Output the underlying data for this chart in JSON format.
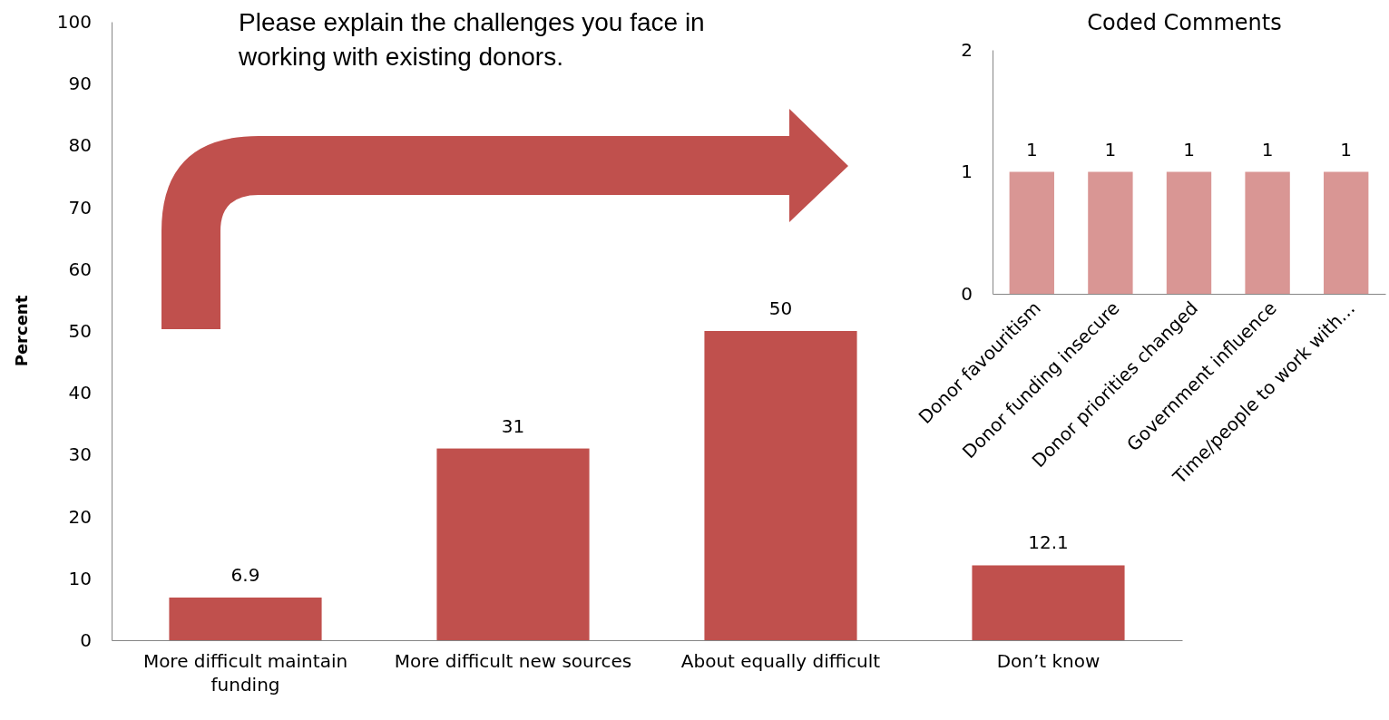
{
  "chart_data": [
    {
      "type": "bar",
      "ylabel": "Percent",
      "categories": [
        "More difficult maintain funding",
        "More difficult new sources",
        "About equally difficult",
        "Don’t know"
      ],
      "values": [
        6.9,
        31,
        50,
        12.1
      ],
      "color": "#c0504d",
      "ylim": [
        0,
        100
      ],
      "yticks": [
        0,
        10,
        20,
        30,
        40,
        50,
        60,
        70,
        80,
        90,
        100
      ],
      "data_labels": true
    },
    {
      "type": "bar",
      "title": "Coded Comments",
      "annotations": [
        "Please explain the challenges you face in working with existing donors."
      ],
      "categories": [
        "Donor favouritism",
        "Donor funding insecure",
        "Donor priorities changed",
        "Government influence",
        "Time/people to work with…"
      ],
      "values": [
        1,
        1,
        1,
        1,
        1
      ],
      "color": "#d99694",
      "ylim": [
        0,
        2
      ],
      "yticks": [
        0,
        1,
        2
      ],
      "data_labels": true
    }
  ]
}
